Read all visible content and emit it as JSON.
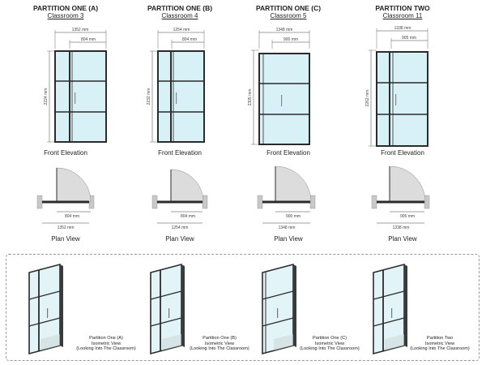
{
  "partitions": [
    {
      "title": "PARTITION ONE (A)",
      "room": "Classroom 3",
      "overall_width": "1352 mm",
      "door_width": "804 mm",
      "height": "2224 mm",
      "plan_door_width": "804 mm",
      "plan_overall_width": "1352 mm",
      "iso_caption": [
        "Partition One (A)",
        "Isometric View",
        "(Looking Into The Classroom)"
      ]
    },
    {
      "title": "PARTITION ONE (B)",
      "room": "Classroom 4",
      "overall_width": "1254 mm",
      "door_width": "804 mm",
      "height": "2232 mm",
      "plan_door_width": "804 mm",
      "plan_overall_width": "1254 mm",
      "iso_caption": [
        "Partition One (B)",
        "Isometric View",
        "(Looking Into The Classroom)"
      ]
    },
    {
      "title": "PARTITION ONE (C)",
      "room": "Classroom 5",
      "overall_width": "1348 mm",
      "door_width": "900 mm",
      "height": "2305 mm",
      "plan_door_width": "900 mm",
      "plan_overall_width": "1348 mm",
      "iso_caption": [
        "Partition One (C)",
        "Isometric View",
        "(Looking Into The Classroom)"
      ]
    },
    {
      "title": "PARTITION TWO",
      "room": "Classroom 11",
      "overall_width": "1338 mm",
      "door_width": "905 mm",
      "height": "2262 mm",
      "plan_door_width": "905 mm",
      "plan_overall_width": "1338 mm",
      "iso_caption": [
        "Partition Two",
        "Isometric View",
        "(Looking Into The Classroom)"
      ]
    }
  ],
  "labels": {
    "front_elevation": "Front Elevation",
    "plan_view": "Plan View"
  },
  "colors": {
    "glass": "#d8f1f7",
    "frame": "#2b2b2b",
    "door_swing": "#dcdcdc",
    "wall": "#c9c9c9"
  }
}
